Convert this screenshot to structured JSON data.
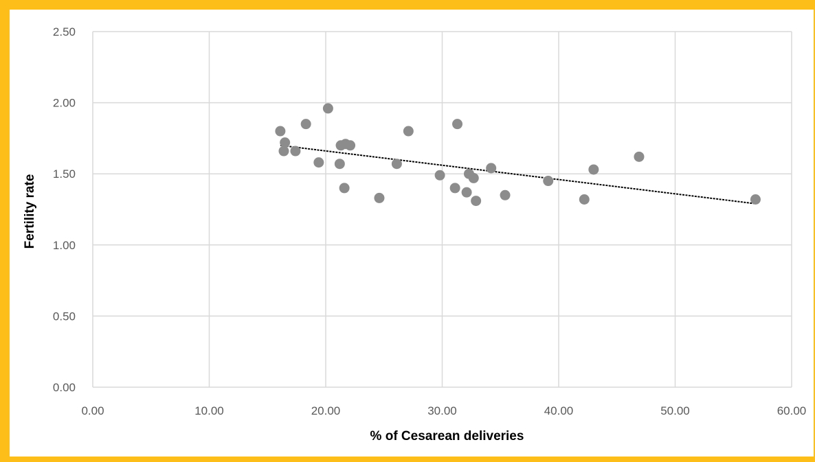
{
  "chart_data": {
    "type": "scatter",
    "title": "",
    "xlabel": "% of Cesarean deliveries",
    "ylabel": "Fertility rate",
    "xlim": [
      0,
      60
    ],
    "ylim": [
      0,
      2.5
    ],
    "x_ticks": [
      "0.00",
      "10.00",
      "20.00",
      "30.00",
      "40.00",
      "50.00",
      "60.00"
    ],
    "y_ticks": [
      "0.00",
      "0.50",
      "1.00",
      "1.50",
      "2.00",
      "2.50"
    ],
    "grid": true,
    "legend": "none",
    "series": [
      {
        "points": [
          {
            "x": 16.1,
            "y": 1.8
          },
          {
            "x": 16.5,
            "y": 1.72
          },
          {
            "x": 16.4,
            "y": 1.66
          },
          {
            "x": 17.4,
            "y": 1.66
          },
          {
            "x": 18.3,
            "y": 1.85
          },
          {
            "x": 19.4,
            "y": 1.58
          },
          {
            "x": 20.2,
            "y": 1.96
          },
          {
            "x": 21.2,
            "y": 1.57
          },
          {
            "x": 21.3,
            "y": 1.7
          },
          {
            "x": 21.7,
            "y": 1.71
          },
          {
            "x": 22.1,
            "y": 1.7
          },
          {
            "x": 21.6,
            "y": 1.4
          },
          {
            "x": 24.6,
            "y": 1.33
          },
          {
            "x": 26.1,
            "y": 1.57
          },
          {
            "x": 27.1,
            "y": 1.8
          },
          {
            "x": 29.8,
            "y": 1.49
          },
          {
            "x": 31.1,
            "y": 1.4
          },
          {
            "x": 31.3,
            "y": 1.85
          },
          {
            "x": 32.1,
            "y": 1.37
          },
          {
            "x": 32.3,
            "y": 1.5
          },
          {
            "x": 32.7,
            "y": 1.47
          },
          {
            "x": 32.9,
            "y": 1.31
          },
          {
            "x": 34.2,
            "y": 1.54
          },
          {
            "x": 35.4,
            "y": 1.35
          },
          {
            "x": 39.1,
            "y": 1.45
          },
          {
            "x": 42.2,
            "y": 1.32
          },
          {
            "x": 43.0,
            "y": 1.53
          },
          {
            "x": 46.9,
            "y": 1.62
          },
          {
            "x": 56.9,
            "y": 1.32
          }
        ]
      }
    ],
    "trendline": {
      "type": "linear",
      "x": [
        16.1,
        56.9
      ],
      "y": [
        1.7,
        1.29
      ]
    },
    "colors": {
      "points": "#8C8C8C",
      "trendline": "#000000",
      "grid": "#D9D9D9",
      "frame": "#FDBE1A"
    }
  }
}
